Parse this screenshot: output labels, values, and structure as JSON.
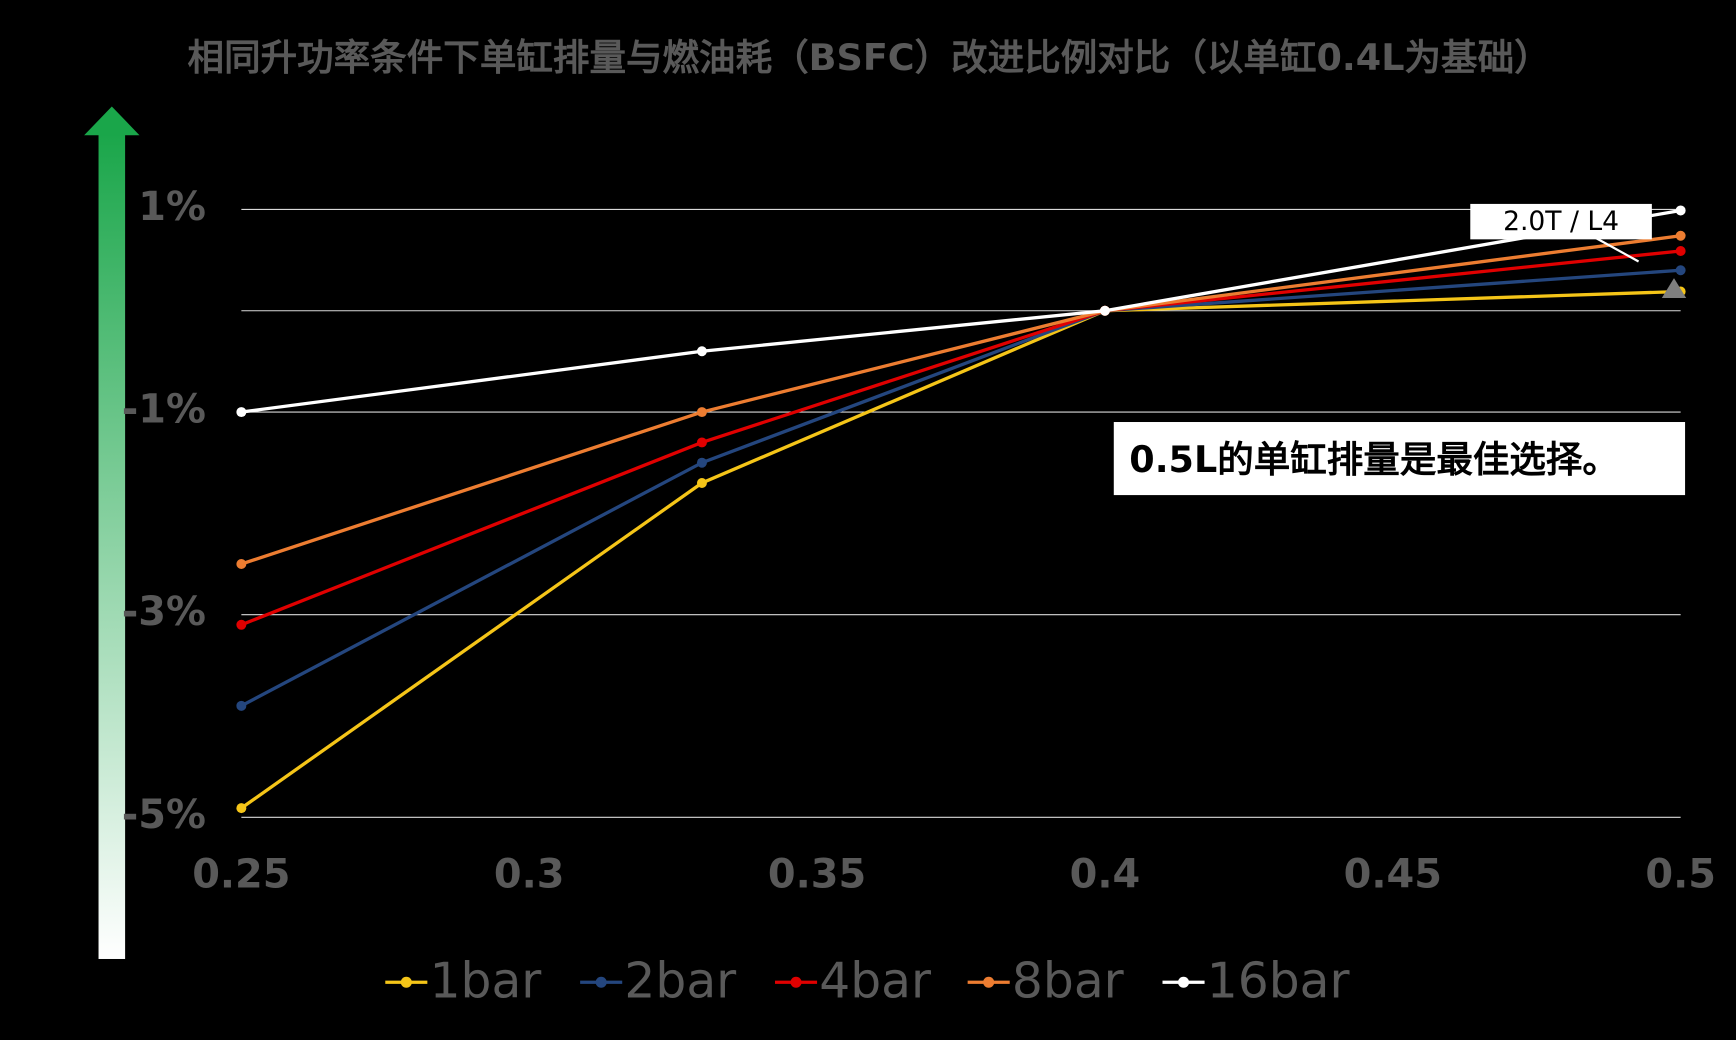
{
  "chart_data": {
    "type": "line",
    "title": "相同升功率条件下单缸排量与燃油耗（BSFC）改进比例对比（以单缸0.4L为基础）",
    "x": [
      0.25,
      0.33,
      0.4,
      0.5
    ],
    "series": [
      {
        "name": "1bar",
        "color": "#f5c518",
        "values": [
          -4.91,
          -1.7,
          0,
          0.19
        ]
      },
      {
        "name": "2bar",
        "color": "#24467e",
        "values": [
          -3.9,
          -1.5,
          0,
          0.4
        ]
      },
      {
        "name": "4bar",
        "color": "#e00000",
        "values": [
          -3.1,
          -1.3,
          0,
          0.59
        ]
      },
      {
        "name": "8bar",
        "color": "#ed7d31",
        "values": [
          -2.5,
          -1.0,
          0,
          0.74
        ]
      },
      {
        "name": "16bar",
        "color": "#ffffff",
        "values": [
          -1.0,
          -0.4,
          0,
          0.99
        ]
      }
    ],
    "xlim": [
      0.25,
      0.5
    ],
    "xticks": [
      0.25,
      0.3,
      0.35,
      0.4,
      0.45,
      0.5
    ],
    "ylim": [
      -5,
      1
    ],
    "yticks": [
      {
        "value": 1,
        "label": "1%"
      },
      {
        "value": -1,
        "label": "-1%"
      },
      {
        "value": -3,
        "label": "-3%"
      },
      {
        "value": -5,
        "label": "-5%"
      }
    ],
    "grid": true,
    "annotations": [
      "2.0T / L4",
      "0.5L的单缸排量是最佳选择。"
    ]
  }
}
